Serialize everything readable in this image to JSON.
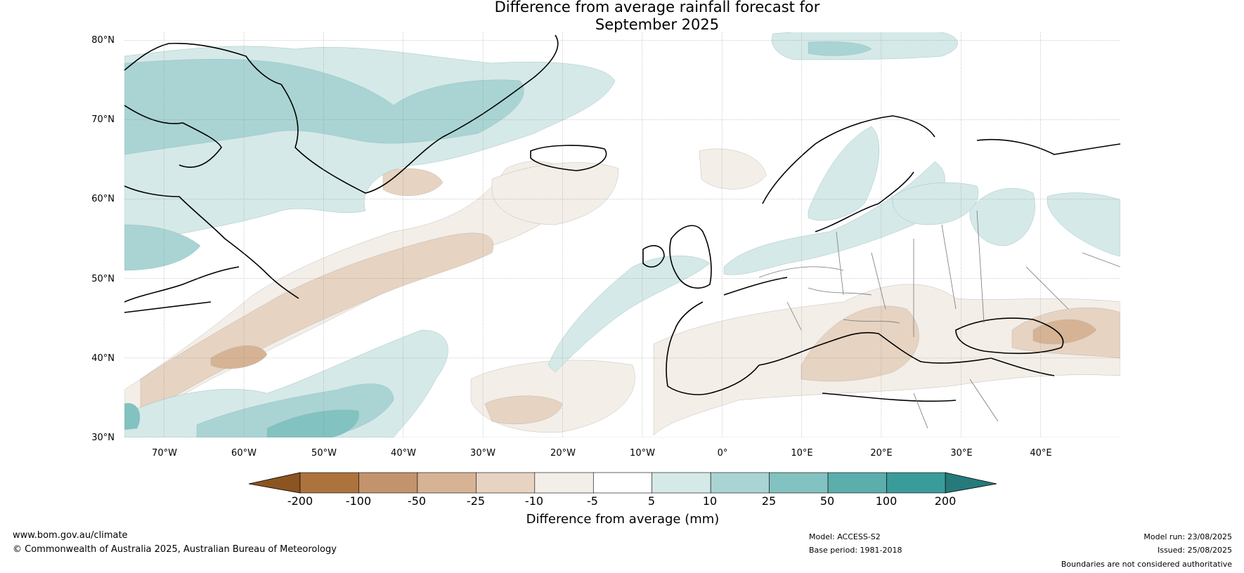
{
  "title": {
    "line1": "Difference from average rainfall forecast for",
    "line2": "September 2025"
  },
  "map": {
    "lat_labels": [
      "80°N",
      "70°N",
      "60°N",
      "50°N",
      "40°N",
      "30°N"
    ],
    "lon_labels": [
      "70°W",
      "60°W",
      "50°W",
      "40°W",
      "30°W",
      "20°W",
      "10°W",
      "0°",
      "10°E",
      "20°E",
      "30°E",
      "40°E"
    ],
    "lat_range": [
      30,
      81
    ],
    "lon_range": [
      -75,
      50
    ],
    "anomaly_regions": [
      {
        "area": "Greenland and Labrador Sea",
        "class": "5 to 25"
      },
      {
        "area": "Central North Atlantic",
        "class": "-25 to -5"
      },
      {
        "area": "Subtropical western Atlantic",
        "class": "10 to 100"
      },
      {
        "area": "Southern Europe and Mediterranean",
        "class": "-25 to -5"
      },
      {
        "area": "Black Sea region",
        "class": "-25 to -5"
      },
      {
        "area": "Scandinavia and Baltic",
        "class": "5 to 10"
      },
      {
        "area": "Svalbard",
        "class": "5 to 10"
      },
      {
        "area": "Western Russia",
        "class": "5 to 10"
      }
    ]
  },
  "colorbar": {
    "title": "Difference from average (mm)",
    "ticks": [
      "-200",
      "-100",
      "-50",
      "-25",
      "-10",
      "-5",
      "5",
      "10",
      "25",
      "50",
      "100",
      "200"
    ],
    "colors": [
      "#8c5420",
      "#ad733f",
      "#c3946c",
      "#d5b394",
      "#e6d3c1",
      "#f3eee8",
      "#ffffff",
      "#d5e9e8",
      "#a9d4d3",
      "#82c2c0",
      "#5baeac",
      "#3a9c9a",
      "#267a7a"
    ]
  },
  "footer": {
    "url": "www.bom.gov.au/climate",
    "copyright": "© Commonwealth of Australia 2025, Australian Bureau of Meteorology",
    "model": "Model: ACCESS-S2",
    "base_period": "Base period: 1981-2018",
    "model_run": "Model run: 23/08/2025",
    "issued": "Issued: 25/08/2025",
    "disclaimer": "Boundaries are not considered authoritative"
  }
}
